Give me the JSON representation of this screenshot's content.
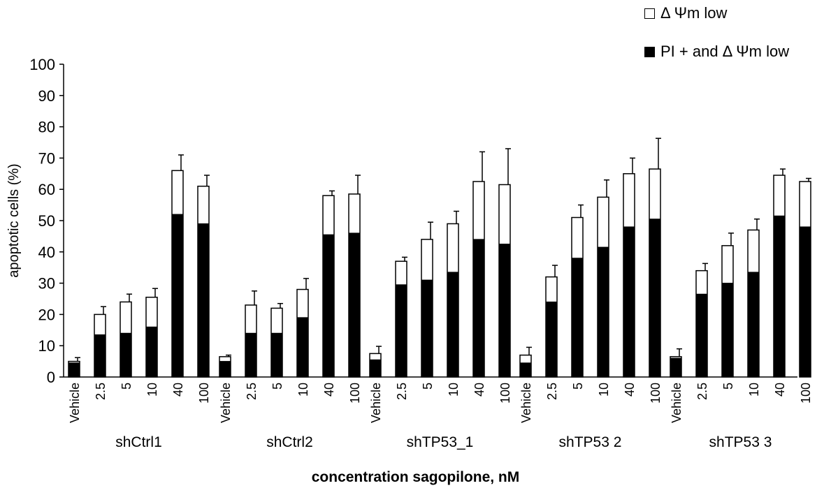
{
  "chart_data": {
    "type": "bar",
    "stacked": true,
    "ylabel": "apoptotic cells (%)",
    "xlabel": "concentration sagopilone, nM",
    "ylim": [
      0,
      100
    ],
    "yticks": [
      0,
      10,
      20,
      30,
      40,
      50,
      60,
      70,
      80,
      90,
      100
    ],
    "legend_position": "top-right",
    "categories": [
      "Vehicle",
      "2.5",
      "5",
      "10",
      "40",
      "100"
    ],
    "series": [
      {
        "name": "PI + and  Δ Ψm low",
        "color": "#000000"
      },
      {
        "name": "Δ Ψm low",
        "color": "#ffffff"
      }
    ],
    "groups": [
      {
        "label": "shCtrl1",
        "pi_and_low": [
          4.5,
          13.5,
          14,
          16,
          52,
          49
        ],
        "total": [
          5,
          20,
          24,
          25.5,
          66,
          61
        ],
        "error": [
          1.2,
          2.5,
          2.5,
          2.8,
          5,
          3.5
        ]
      },
      {
        "label": "shCtrl2",
        "pi_and_low": [
          5,
          14,
          14,
          19,
          45.5,
          46
        ],
        "total": [
          6.5,
          23,
          22,
          28,
          58,
          58.5
        ],
        "error": [
          0.5,
          4.5,
          1.5,
          3.5,
          1.5,
          6
        ]
      },
      {
        "label": "shTP53_1",
        "pi_and_low": [
          5.5,
          29.5,
          31,
          33.5,
          44,
          42.5
        ],
        "total": [
          7.5,
          37,
          44,
          49,
          62.5,
          61.5
        ],
        "error": [
          2.3,
          1.3,
          5.5,
          4,
          9.5,
          11.5
        ]
      },
      {
        "label": "shTP53  2",
        "pi_and_low": [
          4.5,
          24,
          38,
          41.5,
          48,
          50.5
        ],
        "total": [
          7,
          32,
          51,
          57.5,
          65,
          66.5
        ],
        "error": [
          2.5,
          3.7,
          4,
          5.5,
          5,
          9.8
        ]
      },
      {
        "label": "shTP53  3",
        "pi_and_low": [
          6,
          26.5,
          30,
          33.5,
          51.5,
          48
        ],
        "total": [
          6.5,
          34,
          42,
          47,
          64.5,
          62.5
        ],
        "error": [
          2.5,
          2.3,
          4,
          3.5,
          2,
          1
        ]
      }
    ]
  }
}
